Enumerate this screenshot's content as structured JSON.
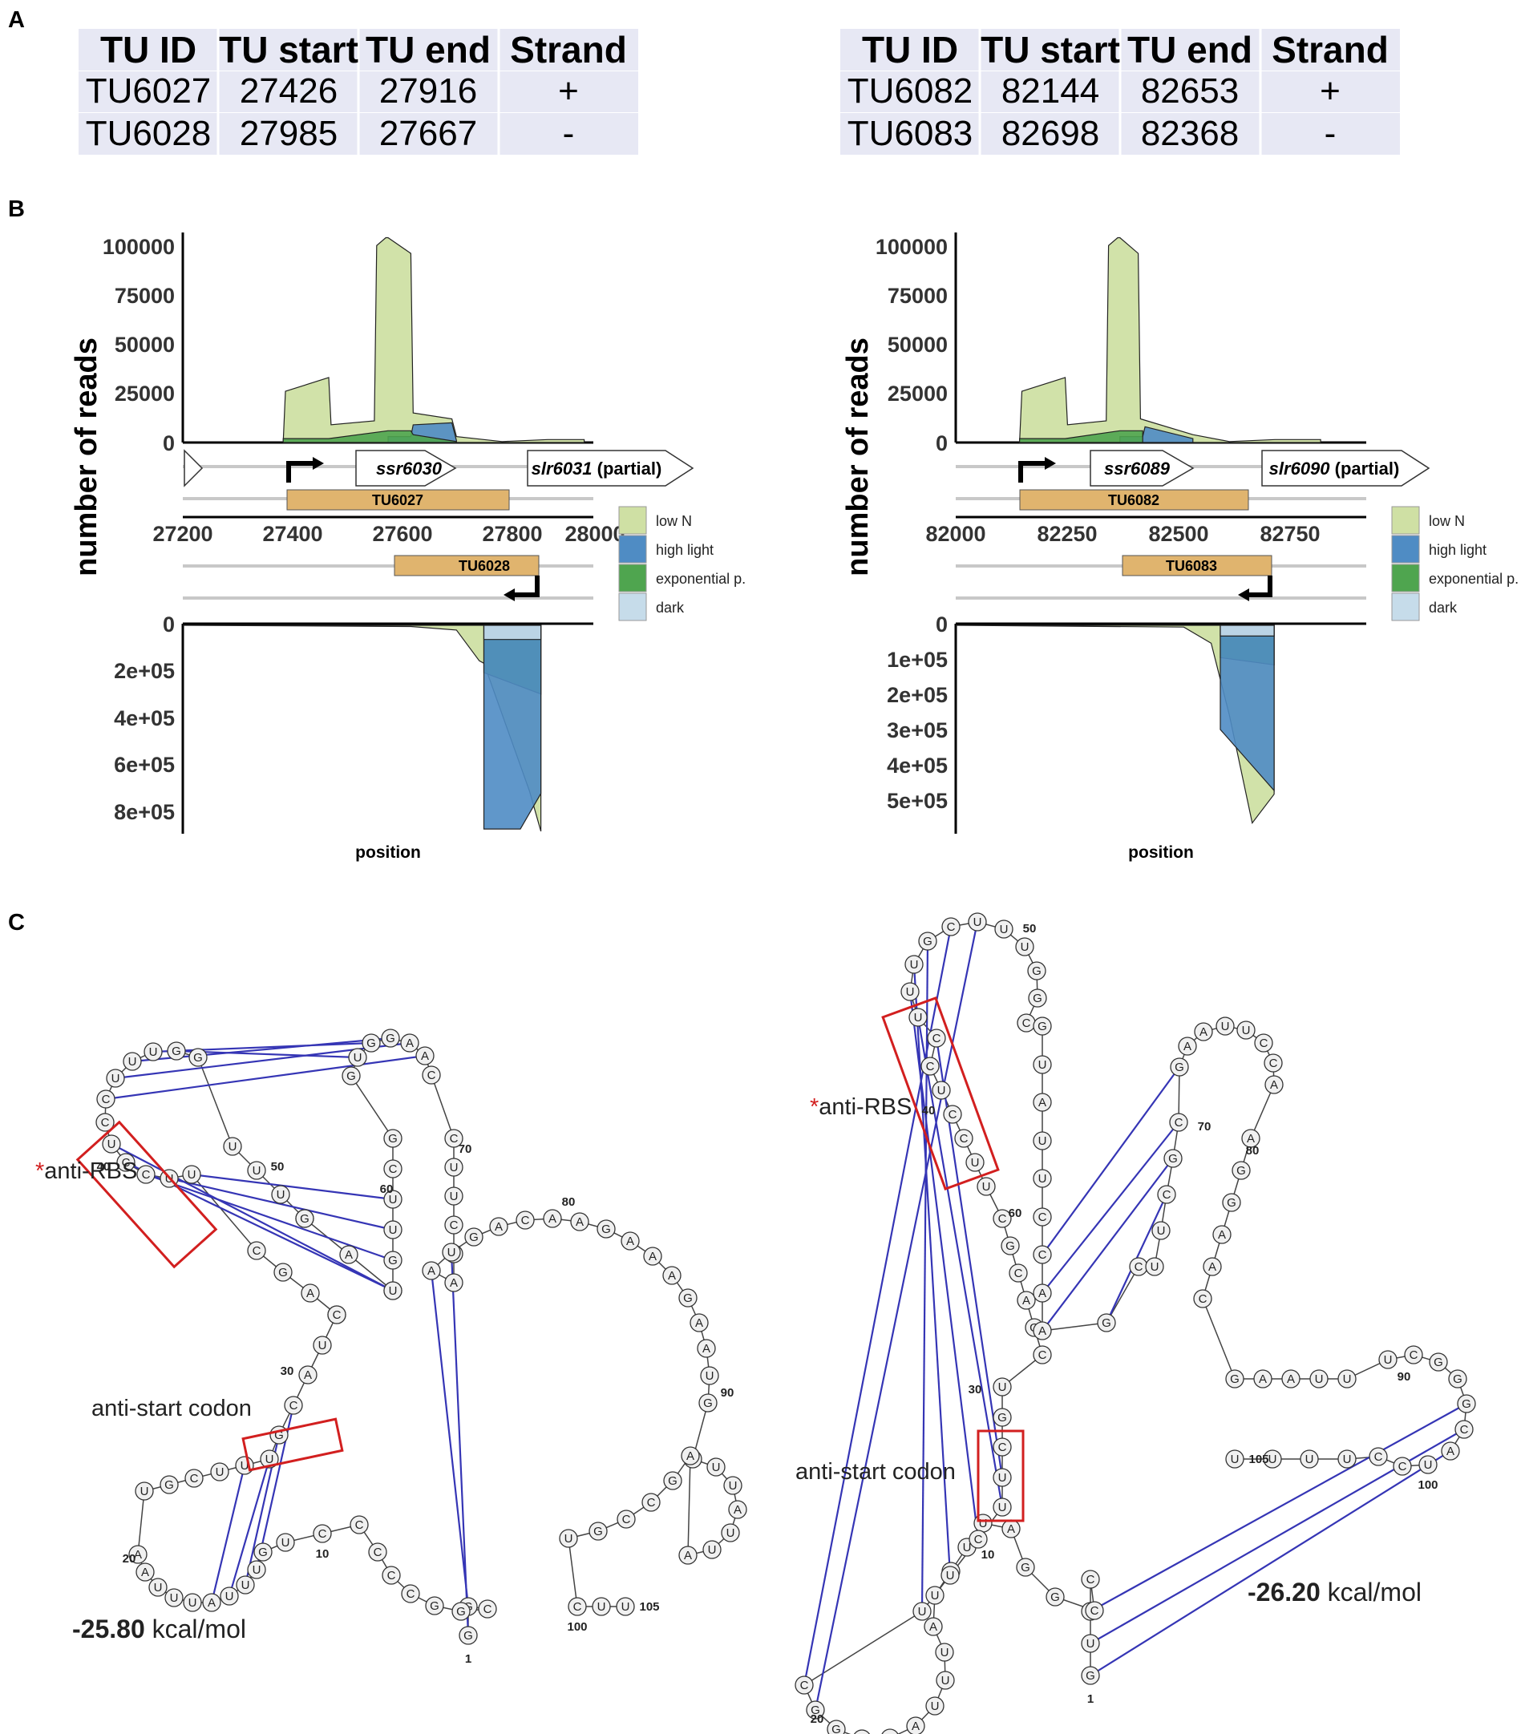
{
  "panel_labels": {
    "a": "A",
    "b": "B",
    "c": "C"
  },
  "tables": [
    {
      "headers": [
        "TU ID",
        "TU start",
        "TU end",
        "Strand"
      ],
      "rows": [
        [
          "TU6027",
          "27426",
          "27916",
          "+"
        ],
        [
          "TU6028",
          "27985",
          "27667",
          "-"
        ]
      ]
    },
    {
      "headers": [
        "TU ID",
        "TU start",
        "TU end",
        "Strand"
      ],
      "rows": [
        [
          "TU6082",
          "82144",
          "82653",
          "+"
        ],
        [
          "TU6083",
          "82698",
          "82368",
          "-"
        ]
      ]
    }
  ],
  "coverage_plots": [
    {
      "ylabel": "number of reads",
      "xlabel": "position",
      "top_ticks": [
        "0",
        "25000",
        "50000",
        "75000",
        "100000"
      ],
      "bottom_ticks": [
        "0",
        "2e+05",
        "4e+05",
        "6e+05",
        "8e+05"
      ],
      "x_ticks": [
        "27200",
        "27400",
        "27600",
        "27800",
        "28000"
      ],
      "genes": [
        {
          "name": "ssr6030",
          "suffix": ""
        },
        {
          "name": "slr6031",
          "suffix": " (partial)"
        }
      ],
      "tu_plus": "TU6027",
      "tu_minus": "TU6028"
    },
    {
      "ylabel": "number of reads",
      "xlabel": "position",
      "top_ticks": [
        "0",
        "25000",
        "50000",
        "75000",
        "100000"
      ],
      "bottom_ticks": [
        "0",
        "1e+05",
        "2e+05",
        "3e+05",
        "4e+05",
        "5e+05"
      ],
      "x_ticks": [
        "82000",
        "82250",
        "82500",
        "82750"
      ],
      "genes": [
        {
          "name": "ssr6089",
          "suffix": ""
        },
        {
          "name": "slr6090",
          "suffix": " (partial)"
        }
      ],
      "tu_plus": "TU6082",
      "tu_minus": "TU6083"
    }
  ],
  "legend": [
    {
      "label": "low N",
      "color": "#cfe0a4"
    },
    {
      "label": "high light",
      "color": "#4f8cc4"
    },
    {
      "label": "exponential p.",
      "color": "#4fa54f"
    },
    {
      "label": "dark",
      "color": "#c6dcea"
    }
  ],
  "chart_data": [
    {
      "type": "area",
      "title": "",
      "xlabel": "position",
      "ylabel": "number of reads",
      "xlim": [
        27200,
        28100
      ],
      "ylim": [
        0,
        105000
      ],
      "series": [
        {
          "name": "low N",
          "x": [
            27420,
            27425,
            27520,
            27525,
            27620,
            27625,
            27645,
            27650,
            27700,
            27705,
            27790,
            27800,
            27900,
            28000,
            28080
          ],
          "values": [
            0,
            26000,
            33000,
            9000,
            11000,
            100000,
            104000,
            104000,
            96000,
            15000,
            12000,
            3000,
            500,
            1500,
            1500
          ]
        },
        {
          "name": "high light",
          "x": [
            27650,
            27700,
            27705,
            27790,
            27800
          ],
          "values": [
            3000,
            3000,
            9000,
            10000,
            1000
          ]
        },
        {
          "name": "exponential p.",
          "x": [
            27420,
            27520,
            27650,
            27700,
            27705,
            27800
          ],
          "values": [
            2000,
            2000,
            6000,
            6000,
            4000,
            500
          ]
        }
      ]
    },
    {
      "type": "area",
      "title": "",
      "xlabel": "position",
      "ylabel": "number of reads",
      "xlim": [
        27200,
        28100
      ],
      "ylim": [
        0,
        880000
      ],
      "series": [
        {
          "name": "low N",
          "x": [
            27200,
            27700,
            27800,
            27850,
            27860,
            27960,
            27985
          ],
          "values": [
            0,
            5000,
            20000,
            150000,
            160000,
            700000,
            870000
          ]
        },
        {
          "name": "exponential p.",
          "x": [
            27860,
            27985
          ],
          "values": [
            200000,
            290000
          ]
        },
        {
          "name": "high light",
          "x": [
            27860,
            27940,
            27985
          ],
          "values": [
            860000,
            860000,
            710000
          ]
        },
        {
          "name": "dark",
          "x": [
            27860,
            27985
          ],
          "values": [
            60000,
            60000
          ]
        }
      ]
    },
    {
      "type": "area",
      "title": "",
      "xlabel": "position",
      "ylabel": "number of reads",
      "xlim": [
        82000,
        82900
      ],
      "ylim": [
        0,
        105000
      ],
      "series": [
        {
          "name": "low N",
          "x": [
            82140,
            82145,
            82240,
            82245,
            82330,
            82335,
            82355,
            82360,
            82400,
            82405,
            82520,
            82600,
            82700,
            82800
          ],
          "values": [
            0,
            26000,
            33000,
            9000,
            11000,
            100000,
            104000,
            104000,
            96000,
            12000,
            4000,
            500,
            1500,
            1500
          ]
        },
        {
          "name": "high light",
          "x": [
            82360,
            82410,
            82415,
            82520
          ],
          "values": [
            3000,
            3000,
            8000,
            2000
          ]
        },
        {
          "name": "exponential p.",
          "x": [
            82140,
            82240,
            82360,
            82410
          ],
          "values": [
            2000,
            2000,
            6000,
            6000
          ]
        }
      ]
    },
    {
      "type": "area",
      "title": "",
      "xlabel": "position",
      "ylabel": "number of reads",
      "xlim": [
        82000,
        82900
      ],
      "ylim": [
        0,
        580000
      ],
      "series": [
        {
          "name": "low N",
          "x": [
            82000,
            82500,
            82560,
            82600,
            82650,
            82698
          ],
          "values": [
            0,
            5000,
            50000,
            250000,
            550000,
            470000
          ]
        },
        {
          "name": "exponential p.",
          "x": [
            82580,
            82698
          ],
          "values": [
            90000,
            110000
          ]
        },
        {
          "name": "high light",
          "x": [
            82580,
            82698
          ],
          "values": [
            290000,
            460000
          ]
        },
        {
          "name": "dark",
          "x": [
            82580,
            82698
          ],
          "values": [
            30000,
            30000
          ]
        }
      ]
    }
  ],
  "structures": [
    {
      "annotations": {
        "anti_rbs_star": "*",
        "anti_rbs": "anti-RBS",
        "anti_start": "anti-start codon"
      },
      "energy_value": "-25.80",
      "energy_unit": " kcal/mol",
      "numbers": [
        "1",
        "10",
        "20",
        "30",
        "40",
        "50",
        "60",
        "70",
        "80",
        "90",
        "100",
        "105"
      ]
    },
    {
      "annotations": {
        "anti_rbs_star": "*",
        "anti_rbs": "anti-RBS",
        "anti_start": "anti-start codon"
      },
      "energy_value": "-26.20",
      "energy_unit": " kcal/mol",
      "numbers": [
        "1",
        "10",
        "20",
        "30",
        "40",
        "50",
        "60",
        "70",
        "80",
        "90",
        "100",
        "105"
      ]
    }
  ]
}
